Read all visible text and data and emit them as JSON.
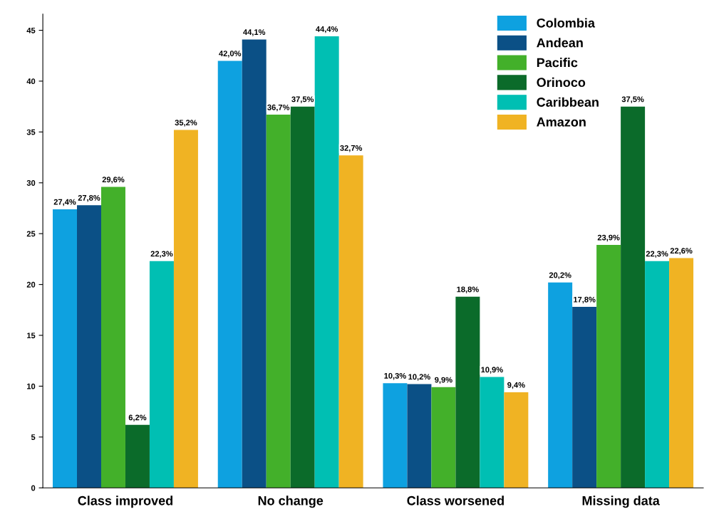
{
  "chart_data": {
    "type": "bar",
    "categories": [
      "Class improved",
      "No change",
      "Class worsened",
      "Missing data"
    ],
    "series": [
      {
        "name": "Colombia",
        "color": "#0ea1e0",
        "values": [
          27.4,
          42.0,
          10.3,
          20.2
        ],
        "value_labels": [
          "27,4%",
          "42,0%",
          "10,3%",
          "20,2%"
        ]
      },
      {
        "name": "Andean",
        "color": "#0b5086",
        "values": [
          27.8,
          44.1,
          10.2,
          17.8
        ],
        "value_labels": [
          "27,8%",
          "44,1%",
          "10,2%",
          "17,8%"
        ]
      },
      {
        "name": "Pacific",
        "color": "#43b02a",
        "values": [
          29.6,
          36.7,
          9.9,
          23.9
        ],
        "value_labels": [
          "29,6%",
          "36,7%",
          "9,9%",
          "23,9%"
        ]
      },
      {
        "name": "Orinoco",
        "color": "#0b6b2a",
        "values": [
          6.2,
          37.5,
          18.8,
          37.5
        ],
        "value_labels": [
          "6,2%",
          "37,5%",
          "18,8%",
          "37,5%"
        ]
      },
      {
        "name": "Caribbean",
        "color": "#00bfb3",
        "values": [
          22.3,
          44.4,
          10.9,
          22.3
        ],
        "value_labels": [
          "22,3%",
          "44,4%",
          "10,9%",
          "22,3%"
        ]
      },
      {
        "name": "Amazon",
        "color": "#f0b323",
        "values": [
          35.2,
          32.7,
          9.4,
          22.6
        ],
        "value_labels": [
          "35,2%",
          "32,7%",
          "9,4%",
          "22,6%"
        ]
      }
    ],
    "ylim": [
      0,
      46.6
    ],
    "yticks": [
      0,
      5,
      10,
      15,
      20,
      25,
      30,
      35,
      40,
      45
    ],
    "grid": false,
    "legend": "top right"
  }
}
